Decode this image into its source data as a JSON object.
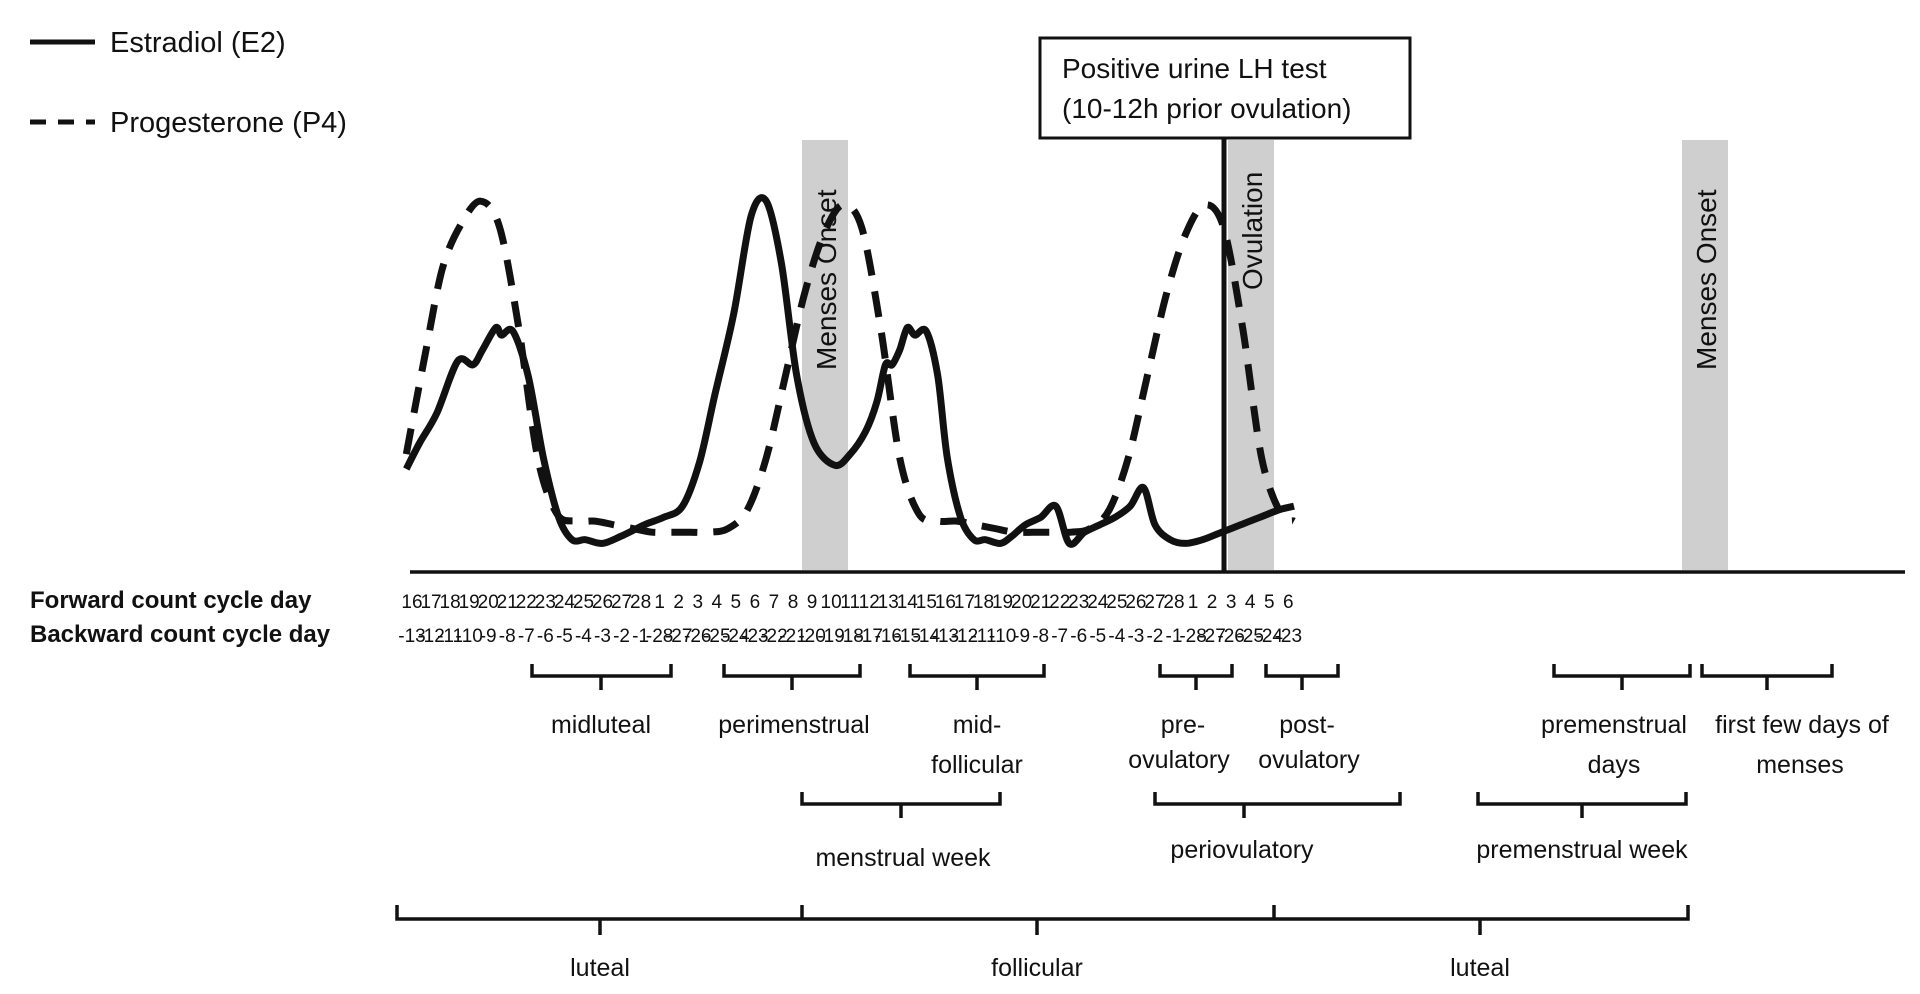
{
  "legend": [
    {
      "label": "Estradiol (E2)",
      "style": "solid"
    },
    {
      "label": "Progesterone (P4)",
      "style": "dashed"
    }
  ],
  "callout": {
    "line1": "Positive urine LH test",
    "line2": "(10-12h prior ovulation)"
  },
  "bands": [
    {
      "label": "Menses Onset",
      "color": "#cfcfcf"
    },
    {
      "label": "Ovulation",
      "color": "#cfcfcf"
    },
    {
      "label": "Menses Onset",
      "color": "#cfcfcf"
    }
  ],
  "day_rows": {
    "forward_label": "Forward count cycle day",
    "backward_label": "Backward count cycle day",
    "forward": [
      "16",
      "17",
      "18",
      "19",
      "20",
      "21",
      "22",
      "23",
      "24",
      "25",
      "26",
      "27",
      "28",
      "1",
      "2",
      "3",
      "4",
      "5",
      "6",
      "7",
      "8",
      "9",
      "10",
      "11",
      "12",
      "13",
      "14",
      "15",
      "16",
      "17",
      "18",
      "19",
      "20",
      "21",
      "22",
      "23",
      "24",
      "25",
      "26",
      "27",
      "28",
      "1",
      "2",
      "3",
      "4",
      "5",
      "6"
    ],
    "backward": [
      "-13",
      "-12",
      "-11",
      "-10",
      "-9",
      "-8",
      "-7",
      "-6",
      "-5",
      "-4",
      "-3",
      "-2",
      "-1",
      "-28",
      "-27",
      "-26",
      "-25",
      "-24",
      "-23",
      "-22",
      "-21",
      "-20",
      "-19",
      "-18",
      "-17",
      "-16",
      "-15",
      "-14",
      "-13",
      "-12",
      "-11",
      "-10",
      "-9",
      "-8",
      "-7",
      "-6",
      "-5",
      "-4",
      "-3",
      "-2",
      "-1",
      "-28",
      "-27",
      "-26",
      "-25",
      "-24",
      "-23"
    ]
  },
  "phases_row1": [
    {
      "name": "midluteal",
      "lines": [
        "midluteal"
      ]
    },
    {
      "name": "perimenstrual",
      "lines": [
        "perimenstrual"
      ]
    },
    {
      "name": "mid-follicular",
      "lines": [
        "mid-",
        "follicular"
      ]
    },
    {
      "name": "pre-ovulatory",
      "lines": [
        "pre-",
        "ovulatory"
      ]
    },
    {
      "name": "post-ovulatory",
      "lines": [
        "post-",
        "ovulatory"
      ]
    },
    {
      "name": "premenstrual-days",
      "lines": [
        "premenstrual",
        "days"
      ]
    },
    {
      "name": "first-few-days-of-menses",
      "lines": [
        "first few days of",
        "menses"
      ]
    }
  ],
  "phases_row2": [
    {
      "name": "menstrual-week",
      "lines": [
        "menstrual week"
      ]
    },
    {
      "name": "periovulatory",
      "lines": [
        "periovulatory"
      ]
    },
    {
      "name": "premenstrual-week",
      "lines": [
        "premenstrual week"
      ]
    }
  ],
  "phases_row3": [
    {
      "name": "luteal-1",
      "lines": [
        "luteal"
      ]
    },
    {
      "name": "follicular",
      "lines": [
        "follicular"
      ]
    },
    {
      "name": "luteal-2",
      "lines": [
        "luteal"
      ]
    }
  ],
  "chart_data": {
    "type": "line",
    "note_values": "relative hormone levels, 0 = baseline, 1 = estradiol preovulatory peak",
    "estradiol": {
      "x": [
        -0.3,
        0.4,
        1.3,
        2.4,
        3.2,
        3.7,
        4.4,
        4.7,
        5.3,
        6.1,
        6.9,
        7.7,
        8.4,
        9.1,
        10.0,
        11.0,
        12.2,
        13.2,
        14.2,
        15.1,
        15.9,
        16.9,
        17.8,
        18.6,
        19.4,
        20.2,
        21.1,
        22.2,
        23.0,
        23.8,
        24.4,
        24.85,
        25.2,
        25.6,
        26.0,
        26.4,
        27.0,
        27.6,
        28.1,
        28.8,
        29.5,
        30.1,
        30.9,
        31.5,
        32.2,
        33.0,
        33.8,
        34.5,
        35.3,
        36.1,
        36.9,
        37.7,
        38.4,
        39.0,
        39.8,
        40.6,
        41.5,
        42.5,
        43.5,
        44.5,
        45.5,
        46.3
      ],
      "y": [
        0.25,
        0.32,
        0.4,
        0.54,
        0.53,
        0.57,
        0.63,
        0.61,
        0.62,
        0.5,
        0.28,
        0.12,
        0.06,
        0.06,
        0.05,
        0.07,
        0.1,
        0.12,
        0.15,
        0.27,
        0.45,
        0.67,
        0.93,
        0.97,
        0.8,
        0.5,
        0.32,
        0.26,
        0.29,
        0.35,
        0.43,
        0.53,
        0.53,
        0.57,
        0.63,
        0.61,
        0.62,
        0.5,
        0.28,
        0.12,
        0.06,
        0.06,
        0.05,
        0.07,
        0.1,
        0.12,
        0.15,
        0.05,
        0.08,
        0.1,
        0.12,
        0.15,
        0.2,
        0.1,
        0.06,
        0.05,
        0.06,
        0.08,
        0.1,
        0.12,
        0.14,
        0.15
      ]
    },
    "progesterone": {
      "x": [
        -0.3,
        0.7,
        1.6,
        2.6,
        3.6,
        4.6,
        5.6,
        6.6,
        7.6,
        8.6,
        9.6,
        10.6,
        11.6,
        12.6,
        13.6,
        14.6,
        15.6,
        16.6,
        17.6,
        18.6,
        19.6,
        20.6,
        21.6,
        22.6,
        23.6,
        24.6,
        25.6,
        26.6,
        27.6,
        28.6,
        29.6,
        30.6,
        31.6,
        32.6,
        33.6,
        34.6,
        35.6,
        36.6,
        37.6,
        38.6,
        39.6,
        40.6,
        41.6,
        42.6,
        43.6,
        44.6,
        45.6,
        46.3
      ],
      "y": [
        0.29,
        0.56,
        0.79,
        0.91,
        0.97,
        0.9,
        0.63,
        0.28,
        0.13,
        0.11,
        0.11,
        0.1,
        0.09,
        0.08,
        0.08,
        0.08,
        0.08,
        0.09,
        0.14,
        0.28,
        0.5,
        0.72,
        0.88,
        0.96,
        0.9,
        0.63,
        0.28,
        0.13,
        0.11,
        0.11,
        0.1,
        0.09,
        0.08,
        0.08,
        0.08,
        0.08,
        0.09,
        0.14,
        0.28,
        0.5,
        0.72,
        0.88,
        0.96,
        0.9,
        0.63,
        0.28,
        0.13,
        0.11
      ]
    }
  }
}
